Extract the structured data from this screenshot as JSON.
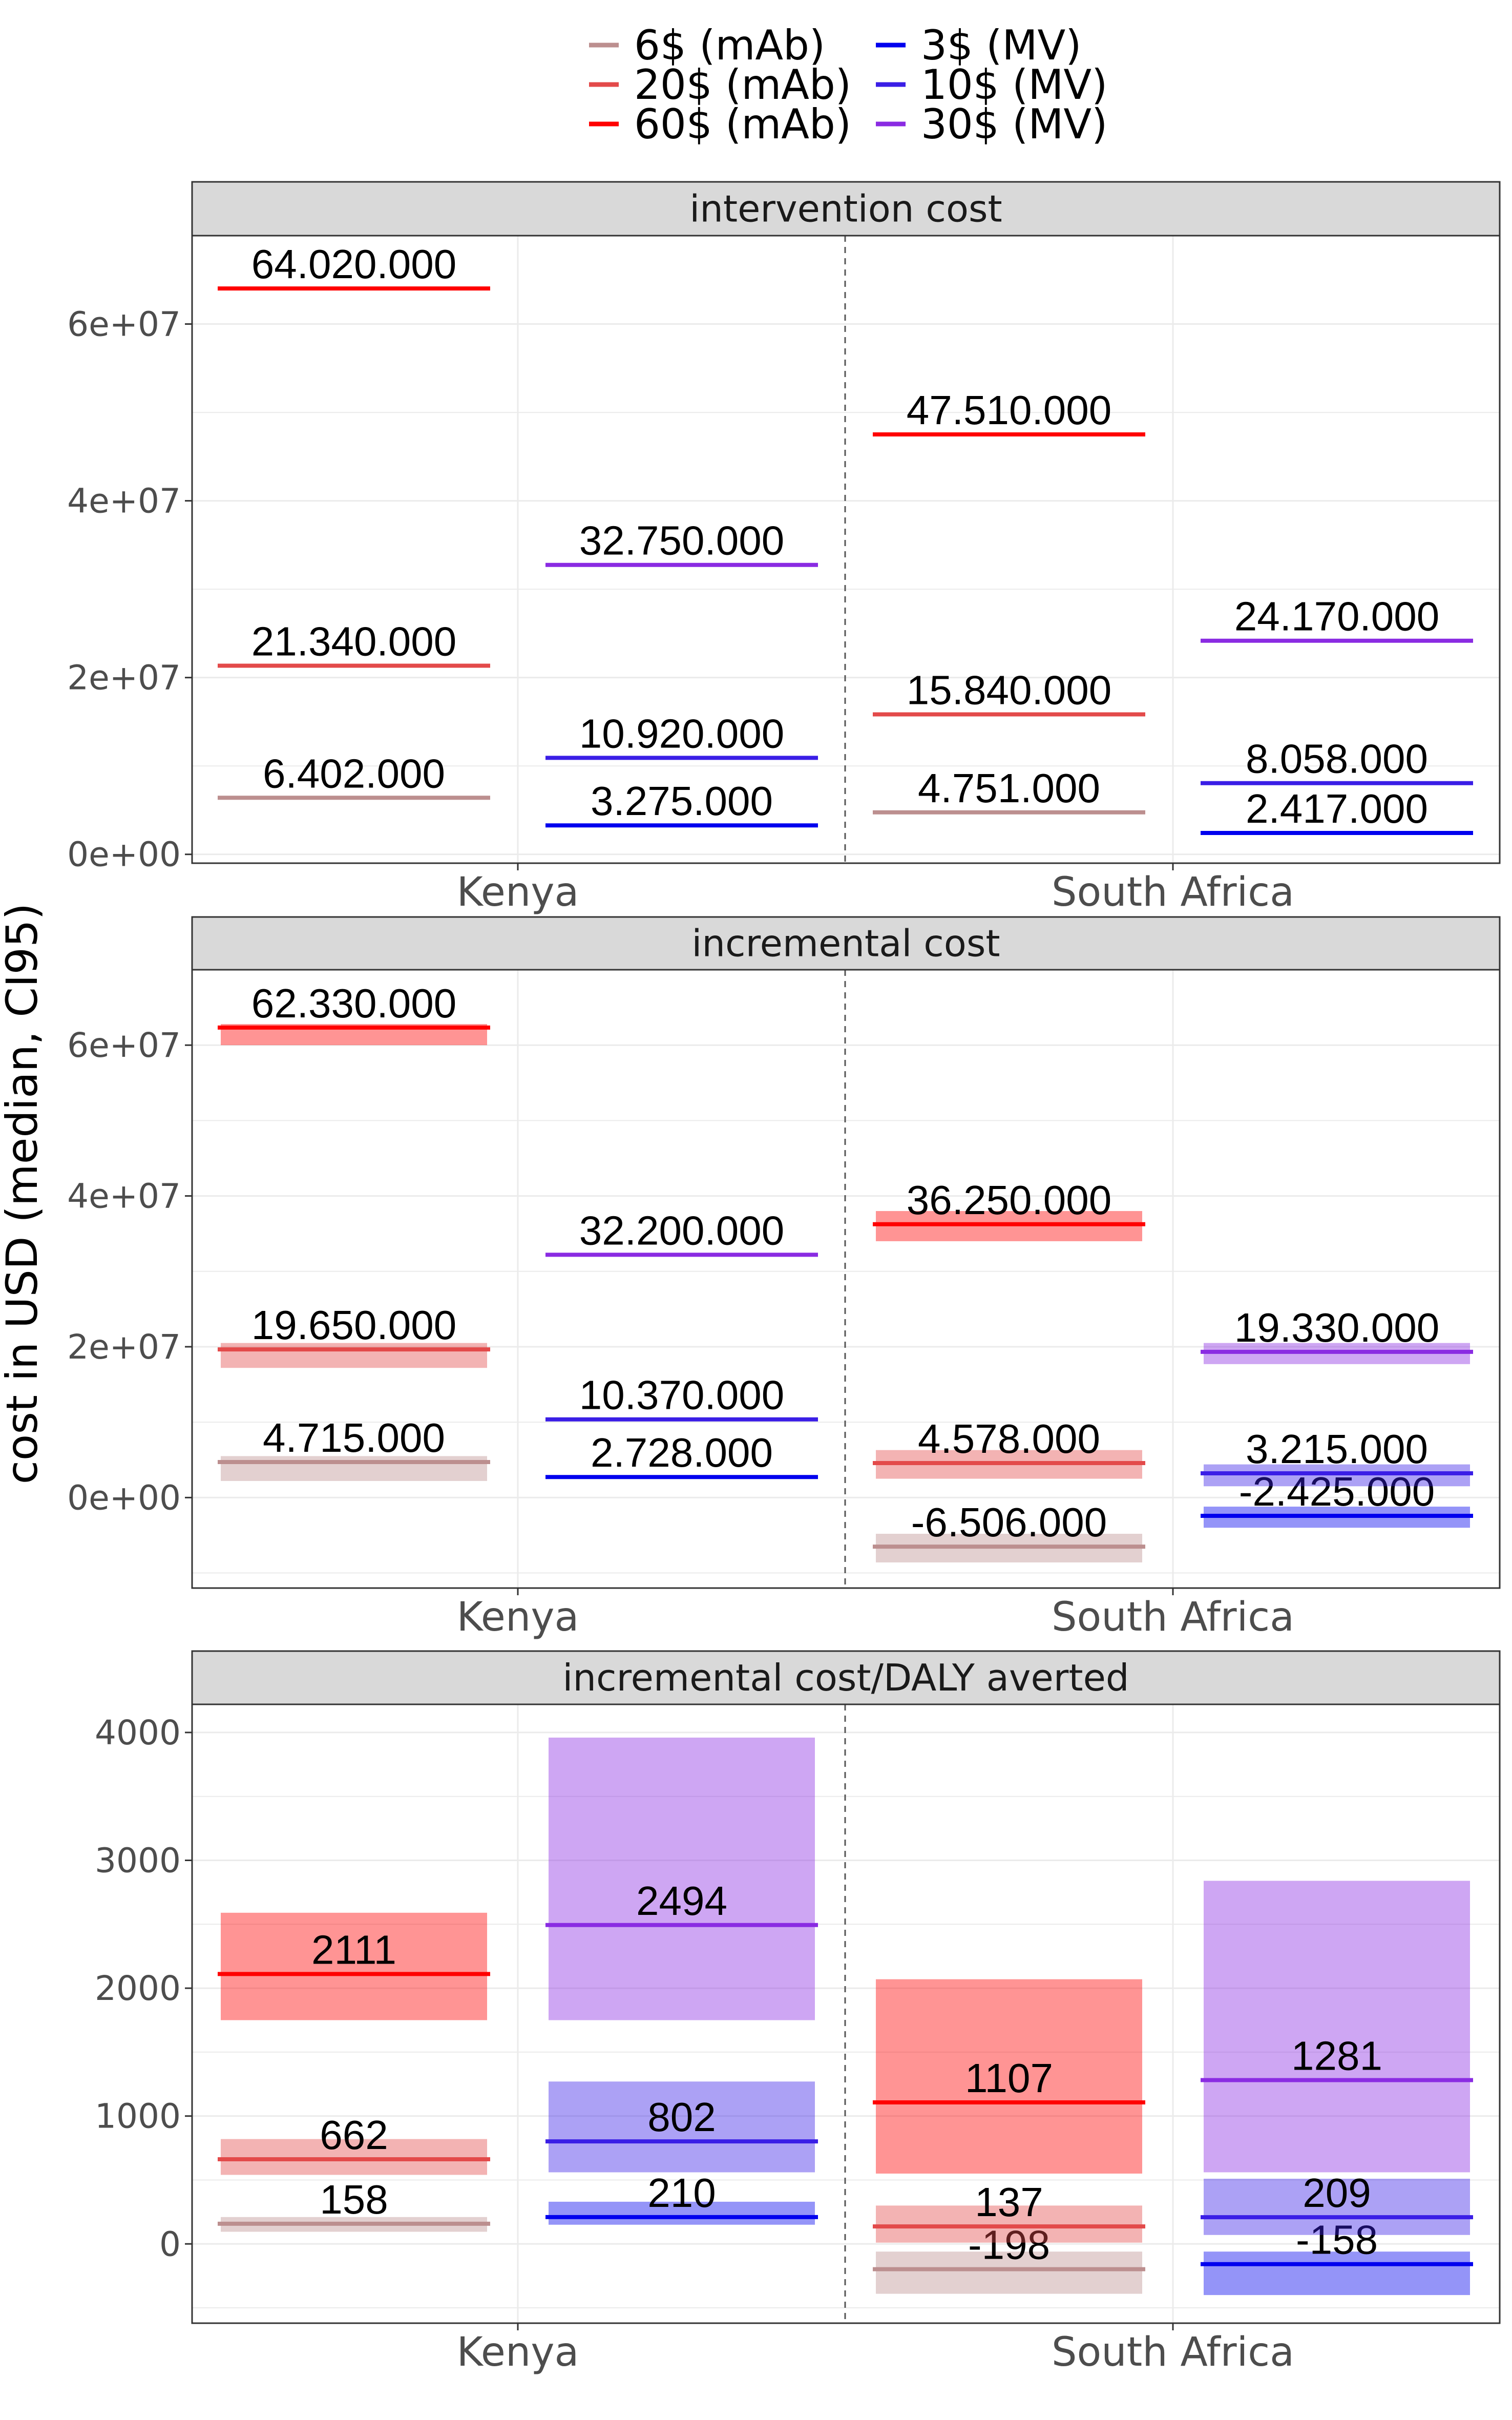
{
  "chart_data": {
    "type": "bar",
    "ylabel": "cost in USD (median, CI95)",
    "grid": true,
    "legend_position": "top",
    "legend": [
      {
        "name": "6$ (mAb)",
        "color": "#bc8f8f"
      },
      {
        "name": "3$ (MV)",
        "color": "#0000ee"
      },
      {
        "name": "20$ (mAb)",
        "color": "#e34a4a"
      },
      {
        "name": "10$ (MV)",
        "color": "#3a1ee6"
      },
      {
        "name": "60$ (mAb)",
        "color": "#ff0000"
      },
      {
        "name": "30$ (MV)",
        "color": "#8a2be2"
      }
    ],
    "categories": [
      "Kenya",
      "South Africa"
    ],
    "panels": [
      {
        "title": "intervention cost",
        "ylim": [
          -1000000,
          70000000
        ],
        "yticks": [
          0,
          20000000,
          40000000,
          60000000
        ],
        "ytick_labels": [
          "0e+00",
          "2e+07",
          "4e+07",
          "6e+07"
        ],
        "series": [
          {
            "name": "6$ (mAb)",
            "Kenya": {
              "median": 6402000,
              "label": "6.402.000"
            },
            "South Africa": {
              "median": 4751000,
              "label": "4.751.000"
            }
          },
          {
            "name": "20$ (mAb)",
            "Kenya": {
              "median": 21340000,
              "label": "21.340.000"
            },
            "South Africa": {
              "median": 15840000,
              "label": "15.840.000"
            }
          },
          {
            "name": "60$ (mAb)",
            "Kenya": {
              "median": 64020000,
              "label": "64.020.000"
            },
            "South Africa": {
              "median": 47510000,
              "label": "47.510.000"
            }
          },
          {
            "name": "3$ (MV)",
            "Kenya": {
              "median": 3275000,
              "label": "3.275.000"
            },
            "South Africa": {
              "median": 2417000,
              "label": "2.417.000"
            }
          },
          {
            "name": "10$ (MV)",
            "Kenya": {
              "median": 10920000,
              "label": "10.920.000"
            },
            "South Africa": {
              "median": 8058000,
              "label": "8.058.000"
            }
          },
          {
            "name": "30$ (MV)",
            "Kenya": {
              "median": 32750000,
              "label": "32.750.000"
            },
            "South Africa": {
              "median": 24170000,
              "label": "24.170.000"
            }
          }
        ]
      },
      {
        "title": "incremental cost",
        "ylim": [
          -12000000,
          70000000
        ],
        "yticks": [
          0,
          20000000,
          40000000,
          60000000
        ],
        "ytick_labels": [
          "0e+00",
          "2e+07",
          "4e+07",
          "6e+07"
        ],
        "series": [
          {
            "name": "6$ (mAb)",
            "Kenya": {
              "median": 4715000,
              "low": 2200000,
              "high": 5500000,
              "label": "4.715.000"
            },
            "South Africa": {
              "median": -6506000,
              "low": -8600000,
              "high": -4800000,
              "label": "-6.506.000"
            }
          },
          {
            "name": "20$ (mAb)",
            "Kenya": {
              "median": 19650000,
              "low": 17200000,
              "high": 20500000,
              "label": "19.650.000"
            },
            "South Africa": {
              "median": 4578000,
              "low": 2500000,
              "high": 6300000,
              "label": "4.578.000"
            }
          },
          {
            "name": "60$ (mAb)",
            "Kenya": {
              "median": 62330000,
              "low": 60000000,
              "high": 62800000,
              "label": "62.330.000"
            },
            "South Africa": {
              "median": 36250000,
              "low": 34000000,
              "high": 38000000,
              "label": "36.250.000"
            }
          },
          {
            "name": "3$ (MV)",
            "Kenya": {
              "median": 2728000,
              "low": 2600000,
              "high": 2850000,
              "label": "2.728.000"
            },
            "South Africa": {
              "median": -2425000,
              "low": -4000000,
              "high": -1200000,
              "label": "-2.425.000"
            }
          },
          {
            "name": "10$ (MV)",
            "Kenya": {
              "median": 10370000,
              "low": 10250000,
              "high": 10500000,
              "label": "10.370.000"
            },
            "South Africa": {
              "median": 3215000,
              "low": 1500000,
              "high": 4400000,
              "label": "3.215.000"
            }
          },
          {
            "name": "30$ (MV)",
            "Kenya": {
              "median": 32200000,
              "low": 32050000,
              "high": 32350000,
              "label": "32.200.000"
            },
            "South Africa": {
              "median": 19330000,
              "low": 17700000,
              "high": 20500000,
              "label": "19.330.000"
            }
          }
        ]
      },
      {
        "title": "incremental cost/DALY averted",
        "ylim": [
          -620,
          4220
        ],
        "yticks": [
          0,
          1000,
          2000,
          3000,
          4000
        ],
        "ytick_labels": [
          "0",
          "1000",
          "2000",
          "3000",
          "4000"
        ],
        "series": [
          {
            "name": "6$ (mAb)",
            "Kenya": {
              "median": 158,
              "low": 95,
              "high": 210,
              "label": "158"
            },
            "South Africa": {
              "median": -198,
              "low": -390,
              "high": -60,
              "label": "-198"
            }
          },
          {
            "name": "20$ (mAb)",
            "Kenya": {
              "median": 662,
              "low": 540,
              "high": 820,
              "label": "662"
            },
            "South Africa": {
              "median": 137,
              "low": 10,
              "high": 300,
              "label": "137"
            }
          },
          {
            "name": "60$ (mAb)",
            "Kenya": {
              "median": 2111,
              "low": 1750,
              "high": 2590,
              "label": "2111"
            },
            "South Africa": {
              "median": 1107,
              "low": 550,
              "high": 2070,
              "label": "1107"
            }
          },
          {
            "name": "3$ (MV)",
            "Kenya": {
              "median": 210,
              "low": 150,
              "high": 330,
              "label": "210"
            },
            "South Africa": {
              "median": -158,
              "low": -400,
              "high": -60,
              "label": "-158"
            }
          },
          {
            "name": "10$ (MV)",
            "Kenya": {
              "median": 802,
              "low": 560,
              "high": 1270,
              "label": "802"
            },
            "South Africa": {
              "median": 209,
              "low": 70,
              "high": 510,
              "label": "209"
            }
          },
          {
            "name": "30$ (MV)",
            "Kenya": {
              "median": 2494,
              "low": 1750,
              "high": 3960,
              "label": "2494"
            },
            "South Africa": {
              "median": 1281,
              "low": 560,
              "high": 2840,
              "label": "1281"
            }
          }
        ]
      }
    ]
  }
}
